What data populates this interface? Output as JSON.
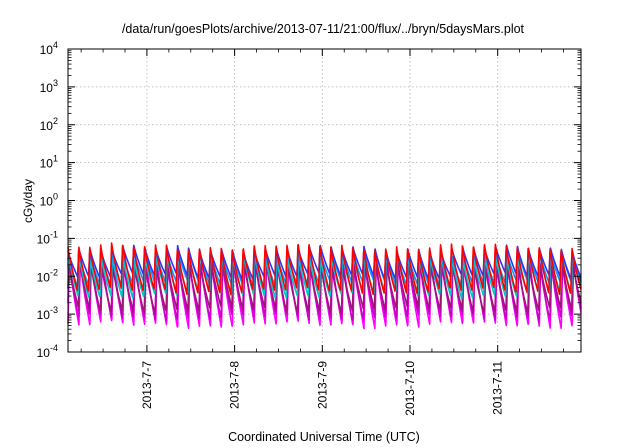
{
  "chart_data": {
    "type": "line",
    "title": "/data/run/goesPlots/archive/2013-07-11/21:00/flux/../bryn/5daysMars.plot",
    "xlabel": "Coordinated Universal Time (UTC)",
    "ylabel": "cGy/day",
    "yscale": "log",
    "ylim_exponents": [
      -4,
      4
    ],
    "ytick_exponents": [
      -4,
      -3,
      -2,
      -1,
      0,
      1,
      2,
      3,
      4
    ],
    "xlim_days": [
      6.1,
      11.95
    ],
    "xticks": [
      {
        "label": "2013-7-7",
        "day": 7
      },
      {
        "label": "2013-7-8",
        "day": 8
      },
      {
        "label": "2013-7-9",
        "day": 9
      },
      {
        "label": "2013-7-10",
        "day": 10
      },
      {
        "label": "2013-7-11",
        "day": 11
      }
    ],
    "grid": true,
    "cycles_per_day": 8,
    "series": [
      {
        "color": "#ff00ff",
        "peak": -1.55,
        "trough": -3.3,
        "phase": 0.0
      },
      {
        "color": "#c800c8",
        "peak": -1.6,
        "trough": -3.1,
        "phase": 0.03
      },
      {
        "color": "#a0147a",
        "peak": -1.65,
        "trough": -2.9,
        "phase": 0.05
      },
      {
        "color": "#00c8c8",
        "peak": -1.45,
        "trough": -2.5,
        "phase": 0.08
      },
      {
        "color": "#00a0ff",
        "peak": -1.35,
        "trough": -2.2,
        "phase": 0.1
      },
      {
        "color": "#3232ff",
        "peak": -1.25,
        "trough": -2.0,
        "phase": 0.12
      },
      {
        "color": "#ff0000",
        "peak": -1.2,
        "trough": -2.4,
        "phase": 0.14
      }
    ]
  }
}
